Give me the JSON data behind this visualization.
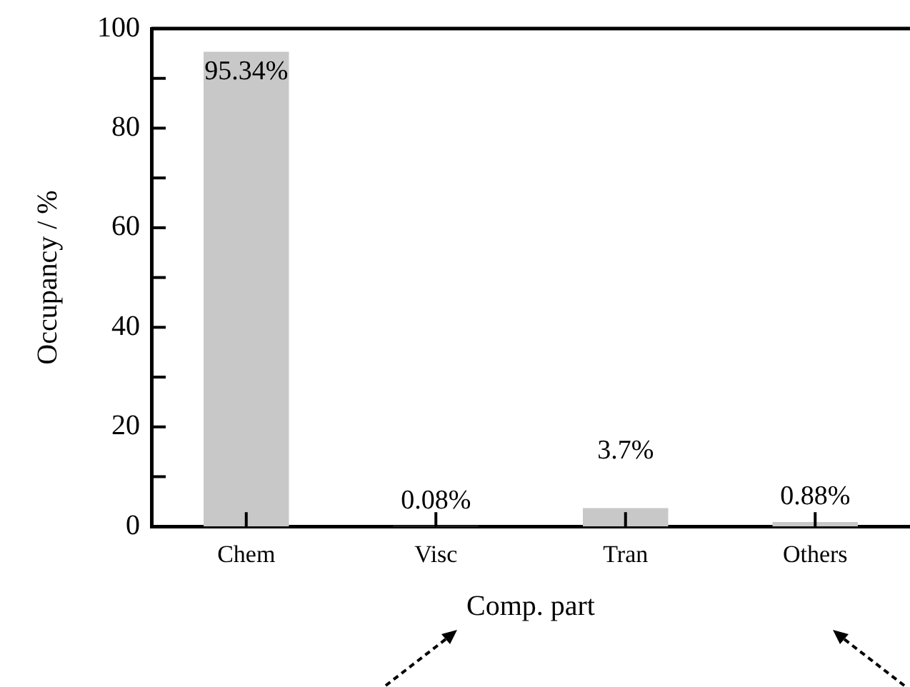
{
  "chart_data": {
    "type": "bar",
    "xlabel": "Comp. part",
    "ylabel": "Occupancy / %",
    "categories": [
      "Chem",
      "Visc",
      "Tran",
      "Others"
    ],
    "values": [
      95.34,
      0.08,
      3.7,
      0.88
    ],
    "value_labels": [
      "95.34%",
      "0.08%",
      "3.7%",
      "0.88%"
    ],
    "color": "#c8c8c8",
    "ylim": [
      0,
      100
    ],
    "yticks": [
      0,
      {
        "value": 10,
        "label": null
      },
      20,
      {
        "value": 30,
        "label": null
      },
      40,
      {
        "value": 50,
        "label": null
      },
      60,
      {
        "value": 70,
        "label": null
      },
      80,
      {
        "value": 90,
        "label": null
      },
      100
    ],
    "grid": false,
    "legend": false
  }
}
